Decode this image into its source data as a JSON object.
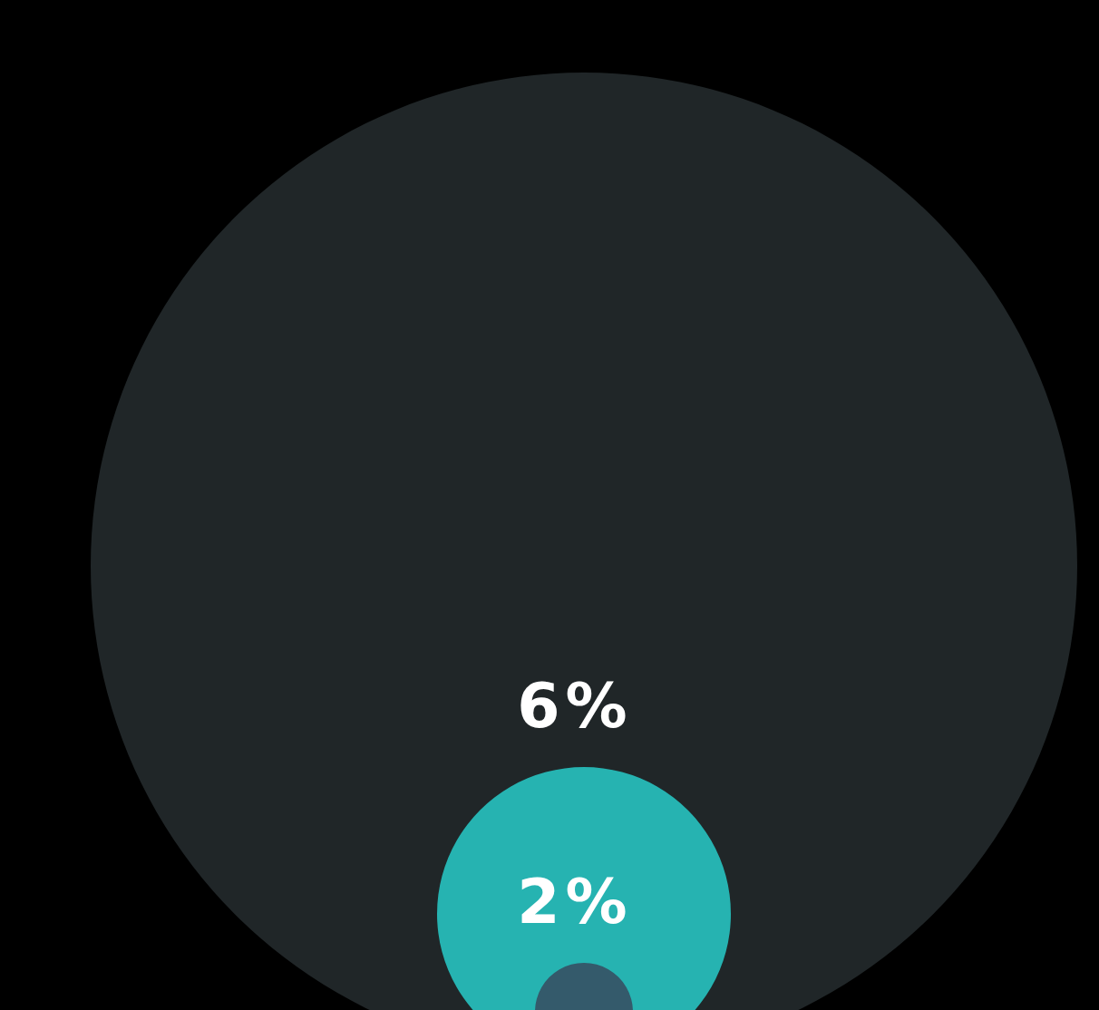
{
  "chart_data": {
    "type": "other",
    "categories": [
      null,
      null,
      null
    ],
    "values": [
      null,
      6,
      2
    ],
    "value_labels": [
      null,
      "6%",
      "2%"
    ],
    "colors": [
      "#202628",
      "#26b3b1",
      "#345a6b"
    ]
  }
}
